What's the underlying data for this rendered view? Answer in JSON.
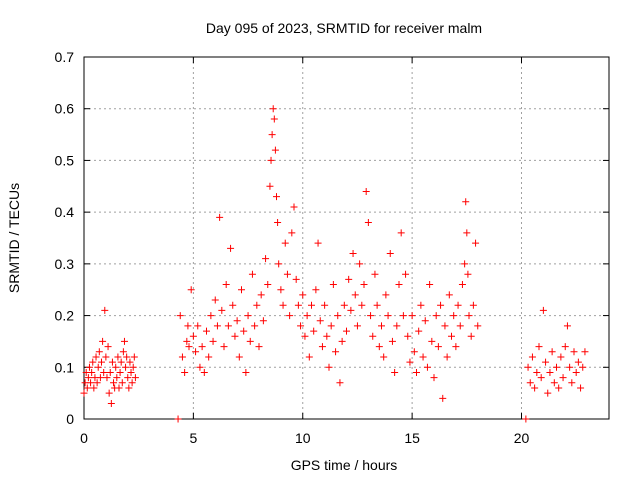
{
  "chart_data": {
    "type": "scatter",
    "title": "Day 095 of 2023, SRMTID for receiver malm",
    "xlabel": "GPS time / hours",
    "ylabel": "SRMTID / TECUs",
    "xlim": [
      0,
      24
    ],
    "ylim": [
      0,
      0.7
    ],
    "x_ticks": [
      0,
      5,
      10,
      15,
      20
    ],
    "y_ticks": [
      0,
      0.1,
      0.2,
      0.3,
      0.4,
      0.5,
      0.6,
      0.7
    ],
    "x_tick_labels": [
      "0",
      "5",
      "10",
      "15",
      "20"
    ],
    "y_tick_labels": [
      "0",
      "0.1",
      "0.2",
      "0.3",
      "0.4",
      "0.5",
      "0.6",
      "0.7"
    ],
    "grid": true,
    "marker": "plus",
    "color": "#ff0000",
    "series": [
      {
        "name": "SRMTID",
        "points": [
          [
            0.0,
            0.05
          ],
          [
            0.05,
            0.07
          ],
          [
            0.1,
            0.09
          ],
          [
            0.15,
            0.06
          ],
          [
            0.2,
            0.08
          ],
          [
            0.25,
            0.1
          ],
          [
            0.3,
            0.07
          ],
          [
            0.35,
            0.09
          ],
          [
            0.4,
            0.11
          ],
          [
            0.45,
            0.06
          ],
          [
            0.5,
            0.08
          ],
          [
            0.55,
            0.12
          ],
          [
            0.6,
            0.07
          ],
          [
            0.65,
            0.1
          ],
          [
            0.7,
            0.13
          ],
          [
            0.75,
            0.08
          ],
          [
            0.8,
            0.11
          ],
          [
            0.85,
            0.15
          ],
          [
            0.9,
            0.09
          ],
          [
            0.95,
            0.21
          ],
          [
            1.0,
            0.12
          ],
          [
            1.05,
            0.08
          ],
          [
            1.1,
            0.14
          ],
          [
            1.15,
            0.05
          ],
          [
            1.2,
            0.09
          ],
          [
            1.25,
            0.03
          ],
          [
            1.3,
            0.11
          ],
          [
            1.35,
            0.07
          ],
          [
            1.4,
            0.06
          ],
          [
            1.45,
            0.1
          ],
          [
            1.5,
            0.08
          ],
          [
            1.55,
            0.12
          ],
          [
            1.6,
            0.06
          ],
          [
            1.65,
            0.09
          ],
          [
            1.7,
            0.11
          ],
          [
            1.75,
            0.07
          ],
          [
            1.8,
            0.13
          ],
          [
            1.85,
            0.15
          ],
          [
            1.9,
            0.1
          ],
          [
            1.95,
            0.12
          ],
          [
            2.0,
            0.08
          ],
          [
            2.05,
            0.06
          ],
          [
            2.1,
            0.11
          ],
          [
            2.15,
            0.09
          ],
          [
            2.2,
            0.07
          ],
          [
            2.25,
            0.1
          ],
          [
            2.3,
            0.12
          ],
          [
            2.35,
            0.08
          ],
          [
            4.3,
            0.0
          ],
          [
            4.4,
            0.2
          ],
          [
            4.5,
            0.12
          ],
          [
            4.6,
            0.09
          ],
          [
            4.7,
            0.15
          ],
          [
            4.75,
            0.18
          ],
          [
            4.8,
            0.14
          ],
          [
            4.9,
            0.25
          ],
          [
            5.0,
            0.16
          ],
          [
            5.1,
            0.13
          ],
          [
            5.2,
            0.18
          ],
          [
            5.3,
            0.1
          ],
          [
            5.4,
            0.14
          ],
          [
            5.5,
            0.09
          ],
          [
            5.6,
            0.17
          ],
          [
            5.7,
            0.12
          ],
          [
            5.8,
            0.2
          ],
          [
            5.9,
            0.15
          ],
          [
            6.0,
            0.23
          ],
          [
            6.1,
            0.18
          ],
          [
            6.2,
            0.39
          ],
          [
            6.3,
            0.21
          ],
          [
            6.4,
            0.14
          ],
          [
            6.5,
            0.26
          ],
          [
            6.6,
            0.18
          ],
          [
            6.7,
            0.33
          ],
          [
            6.8,
            0.22
          ],
          [
            6.9,
            0.16
          ],
          [
            7.0,
            0.19
          ],
          [
            7.1,
            0.12
          ],
          [
            7.2,
            0.25
          ],
          [
            7.3,
            0.17
          ],
          [
            7.4,
            0.09
          ],
          [
            7.5,
            0.2
          ],
          [
            7.6,
            0.15
          ],
          [
            7.7,
            0.28
          ],
          [
            7.8,
            0.18
          ],
          [
            7.9,
            0.22
          ],
          [
            8.0,
            0.14
          ],
          [
            8.1,
            0.24
          ],
          [
            8.2,
            0.19
          ],
          [
            8.3,
            0.31
          ],
          [
            8.4,
            0.26
          ],
          [
            8.5,
            0.45
          ],
          [
            8.55,
            0.5
          ],
          [
            8.6,
            0.55
          ],
          [
            8.65,
            0.6
          ],
          [
            8.7,
            0.58
          ],
          [
            8.75,
            0.52
          ],
          [
            8.8,
            0.43
          ],
          [
            8.85,
            0.38
          ],
          [
            8.9,
            0.3
          ],
          [
            9.0,
            0.25
          ],
          [
            9.1,
            0.22
          ],
          [
            9.2,
            0.34
          ],
          [
            9.3,
            0.28
          ],
          [
            9.4,
            0.2
          ],
          [
            9.5,
            0.36
          ],
          [
            9.6,
            0.41
          ],
          [
            9.7,
            0.27
          ],
          [
            9.8,
            0.22
          ],
          [
            9.9,
            0.18
          ],
          [
            10.0,
            0.24
          ],
          [
            10.1,
            0.16
          ],
          [
            10.2,
            0.2
          ],
          [
            10.3,
            0.12
          ],
          [
            10.4,
            0.22
          ],
          [
            10.5,
            0.17
          ],
          [
            10.6,
            0.25
          ],
          [
            10.7,
            0.34
          ],
          [
            10.8,
            0.19
          ],
          [
            10.9,
            0.14
          ],
          [
            11.0,
            0.22
          ],
          [
            11.1,
            0.16
          ],
          [
            11.2,
            0.1
          ],
          [
            11.3,
            0.18
          ],
          [
            11.4,
            0.26
          ],
          [
            11.5,
            0.13
          ],
          [
            11.6,
            0.2
          ],
          [
            11.7,
            0.07
          ],
          [
            11.8,
            0.15
          ],
          [
            11.9,
            0.22
          ],
          [
            12.0,
            0.17
          ],
          [
            12.1,
            0.27
          ],
          [
            12.2,
            0.21
          ],
          [
            12.3,
            0.32
          ],
          [
            12.4,
            0.24
          ],
          [
            12.5,
            0.18
          ],
          [
            12.6,
            0.3
          ],
          [
            12.7,
            0.22
          ],
          [
            12.8,
            0.26
          ],
          [
            12.9,
            0.44
          ],
          [
            13.0,
            0.38
          ],
          [
            13.1,
            0.2
          ],
          [
            13.2,
            0.16
          ],
          [
            13.3,
            0.28
          ],
          [
            13.4,
            0.22
          ],
          [
            13.5,
            0.14
          ],
          [
            13.6,
            0.18
          ],
          [
            13.7,
            0.12
          ],
          [
            13.8,
            0.24
          ],
          [
            13.9,
            0.2
          ],
          [
            14.0,
            0.32
          ],
          [
            14.1,
            0.15
          ],
          [
            14.2,
            0.09
          ],
          [
            14.3,
            0.18
          ],
          [
            14.4,
            0.26
          ],
          [
            14.5,
            0.36
          ],
          [
            14.6,
            0.2
          ],
          [
            14.7,
            0.28
          ],
          [
            14.8,
            0.16
          ],
          [
            14.9,
            0.11
          ],
          [
            15.0,
            0.2
          ],
          [
            15.1,
            0.13
          ],
          [
            15.2,
            0.09
          ],
          [
            15.3,
            0.17
          ],
          [
            15.4,
            0.22
          ],
          [
            15.5,
            0.12
          ],
          [
            15.6,
            0.19
          ],
          [
            15.7,
            0.1
          ],
          [
            15.8,
            0.26
          ],
          [
            15.9,
            0.15
          ],
          [
            16.0,
            0.08
          ],
          [
            16.1,
            0.2
          ],
          [
            16.2,
            0.14
          ],
          [
            16.3,
            0.22
          ],
          [
            16.4,
            0.04
          ],
          [
            16.5,
            0.18
          ],
          [
            16.6,
            0.12
          ],
          [
            16.7,
            0.24
          ],
          [
            16.8,
            0.16
          ],
          [
            16.9,
            0.2
          ],
          [
            17.0,
            0.14
          ],
          [
            17.1,
            0.22
          ],
          [
            17.2,
            0.18
          ],
          [
            17.3,
            0.26
          ],
          [
            17.4,
            0.3
          ],
          [
            17.45,
            0.42
          ],
          [
            17.5,
            0.36
          ],
          [
            17.55,
            0.28
          ],
          [
            17.6,
            0.2
          ],
          [
            17.7,
            0.16
          ],
          [
            17.8,
            0.22
          ],
          [
            17.9,
            0.34
          ],
          [
            18.0,
            0.18
          ],
          [
            20.2,
            0.0
          ],
          [
            20.3,
            0.1
          ],
          [
            20.4,
            0.07
          ],
          [
            20.5,
            0.12
          ],
          [
            20.6,
            0.06
          ],
          [
            20.7,
            0.09
          ],
          [
            20.8,
            0.14
          ],
          [
            20.9,
            0.08
          ],
          [
            21.0,
            0.21
          ],
          [
            21.1,
            0.11
          ],
          [
            21.2,
            0.05
          ],
          [
            21.3,
            0.09
          ],
          [
            21.4,
            0.13
          ],
          [
            21.5,
            0.07
          ],
          [
            21.6,
            0.1
          ],
          [
            21.7,
            0.06
          ],
          [
            21.8,
            0.12
          ],
          [
            21.9,
            0.08
          ],
          [
            22.0,
            0.14
          ],
          [
            22.1,
            0.18
          ],
          [
            22.2,
            0.1
          ],
          [
            22.3,
            0.07
          ],
          [
            22.4,
            0.13
          ],
          [
            22.5,
            0.09
          ],
          [
            22.6,
            0.11
          ],
          [
            22.7,
            0.06
          ],
          [
            22.8,
            0.1
          ],
          [
            22.9,
            0.13
          ]
        ]
      }
    ]
  }
}
